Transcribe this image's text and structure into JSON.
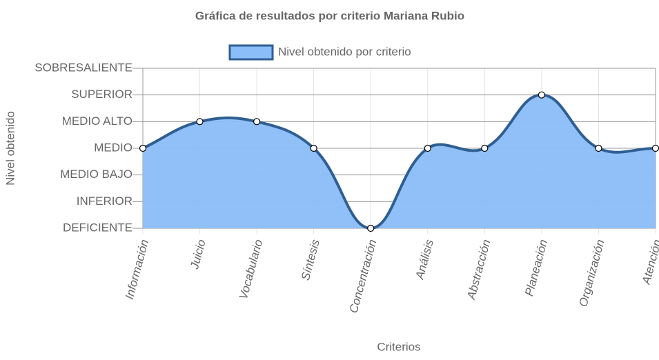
{
  "chart_data": {
    "type": "line",
    "title": "Gráfica de resultados por criterio Mariana Rubio",
    "x_label": "Criterios",
    "y_label": "Nivel obtenido",
    "categories": [
      "Información",
      "Juicio",
      "Vocabulario",
      "Síntesis",
      "Concentración",
      "Análisis",
      "Abstracción",
      "Planeación",
      "Organización",
      "Atención"
    ],
    "series": [
      {
        "name": "Nivel obtenido por criterio",
        "color": "#2f5e93",
        "fill": "#8bbdf8",
        "values": [
          3,
          4,
          4,
          3,
          0,
          3,
          3,
          5,
          3,
          3
        ]
      }
    ],
    "ylim": [
      0,
      6
    ],
    "yticks": [
      {
        "value": 0,
        "label": "DEFICIENTE"
      },
      {
        "value": 1,
        "label": "INFERIOR"
      },
      {
        "value": 2,
        "label": "MEDIO BAJO"
      },
      {
        "value": 3,
        "label": "MEDIO"
      },
      {
        "value": 4,
        "label": "MEDIO ALTO"
      },
      {
        "value": 5,
        "label": "SUPERIOR"
      },
      {
        "value": 6,
        "label": "SOBRESALIENTE"
      }
    ],
    "grid": true,
    "legend": "top"
  }
}
